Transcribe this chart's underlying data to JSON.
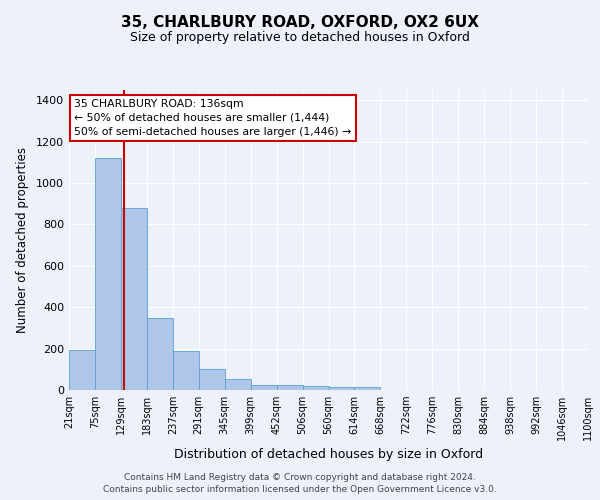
{
  "title1": "35, CHARLBURY ROAD, OXFORD, OX2 6UX",
  "title2": "Size of property relative to detached houses in Oxford",
  "xlabel": "Distribution of detached houses by size in Oxford",
  "ylabel": "Number of detached properties",
  "bin_labels": [
    "21sqm",
    "75sqm",
    "129sqm",
    "183sqm",
    "237sqm",
    "291sqm",
    "345sqm",
    "399sqm",
    "452sqm",
    "506sqm",
    "560sqm",
    "614sqm",
    "668sqm",
    "722sqm",
    "776sqm",
    "830sqm",
    "884sqm",
    "938sqm",
    "992sqm",
    "1046sqm",
    "1100sqm"
  ],
  "bar_values": [
    195,
    1120,
    880,
    350,
    190,
    100,
    55,
    25,
    25,
    20,
    15,
    15,
    0,
    0,
    0,
    0,
    0,
    0,
    0,
    0
  ],
  "bar_color": "#aec6e8",
  "bar_edge_color": "#5a9fd4",
  "bar_highlighted_color": "#c8d8f0",
  "vline_color": "#cc0000",
  "annotation_text1": "35 CHARLBURY ROAD: 136sqm",
  "annotation_text2": "← 50% of detached houses are smaller (1,444)",
  "annotation_text3": "50% of semi-detached houses are larger (1,446) →",
  "annotation_box_facecolor": "#ffffff",
  "annotation_border_color": "#cc0000",
  "ylim": [
    0,
    1450
  ],
  "yticks": [
    0,
    200,
    400,
    600,
    800,
    1000,
    1200,
    1400
  ],
  "footer1": "Contains HM Land Registry data © Crown copyright and database right 2024.",
  "footer2": "Contains public sector information licensed under the Open Government Licence v3.0.",
  "bg_color": "#edf1fa",
  "grid_color": "#ffffff",
  "title1_fontsize": 11,
  "title2_fontsize": 9,
  "ylabel_fontsize": 8.5,
  "xlabel_fontsize": 9,
  "tick_fontsize": 8,
  "xtick_fontsize": 7,
  "footer_fontsize": 6.5,
  "annotation_fontsize": 7.8
}
